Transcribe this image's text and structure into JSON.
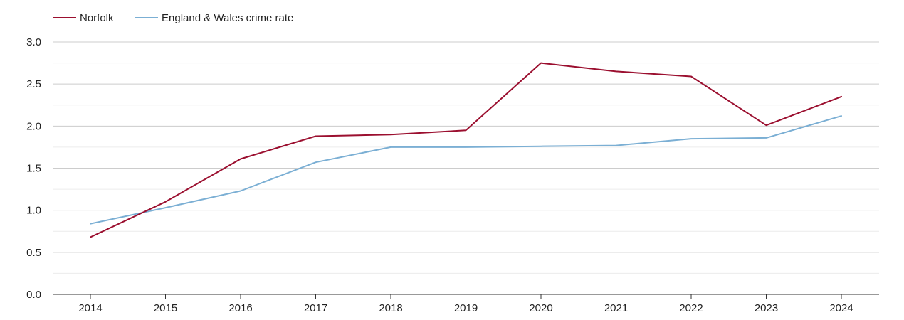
{
  "chart_data": {
    "type": "line",
    "title": "",
    "xlabel": "",
    "ylabel": "",
    "categories": [
      "2014",
      "2015",
      "2016",
      "2017",
      "2018",
      "2019",
      "2020",
      "2021",
      "2022",
      "2023",
      "2024"
    ],
    "ylim": [
      0,
      3
    ],
    "yticks": [
      "0.0",
      "0.5",
      "1.0",
      "1.5",
      "2.0",
      "2.5",
      "3.0"
    ],
    "grid": true,
    "legend_position": "top-left",
    "series": [
      {
        "name": "Norfolk",
        "color": "#9b0f2f",
        "values": [
          0.68,
          1.1,
          1.61,
          1.88,
          1.9,
          1.95,
          2.75,
          2.65,
          2.59,
          2.01,
          2.35
        ]
      },
      {
        "name": "England & Wales crime rate",
        "color": "#7bafd4",
        "values": [
          0.84,
          1.03,
          1.23,
          1.57,
          1.75,
          1.75,
          1.76,
          1.77,
          1.85,
          1.86,
          2.12
        ]
      }
    ]
  }
}
